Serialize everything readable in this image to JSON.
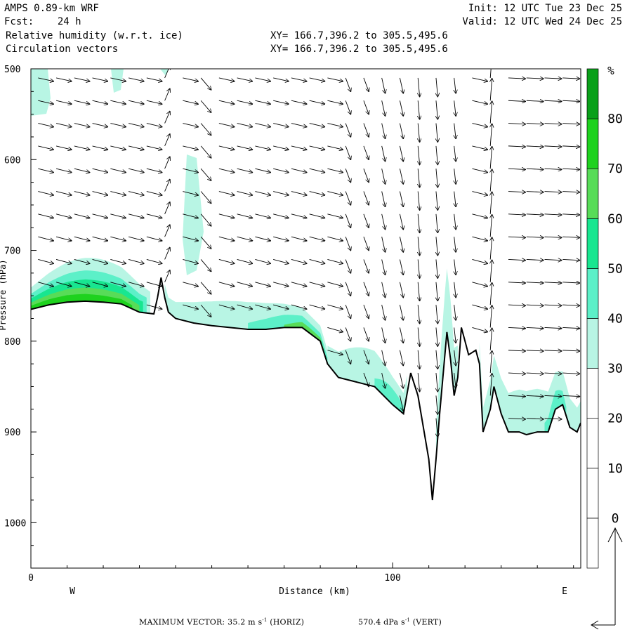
{
  "header": {
    "model": "AMPS 0.89-km WRF",
    "fcst_label": "Fcst:",
    "fcst_value": "24 h",
    "init_label": "Init:",
    "init_value": "12 UTC Tue 23 Dec 25",
    "valid_label": "Valid:",
    "valid_value": "12 UTC Wed 24 Dec 25",
    "field1": "Relative humidity (w.r.t. ice)",
    "field2": "Circulation vectors",
    "xy1": "XY= 166.7,396.2 to 305.5,495.6",
    "xy2": "XY= 166.7,396.2 to 305.5,495.6"
  },
  "footer": {
    "max_label": "MAXIMUM VECTOR:",
    "horiz_value": "35.2 m s",
    "horiz_exp": "-1",
    "horiz_tag": "(HORIZ)",
    "vert_value": "570.4 dPa s",
    "vert_exp": "-1",
    "vert_tag": "(VERT)"
  },
  "colorbar": {
    "unit": "%",
    "levels": [
      0,
      10,
      20,
      30,
      40,
      50,
      60,
      70,
      80
    ],
    "colors": [
      "#ffffff",
      "#ffffff",
      "#ffffff",
      "#b8f5e4",
      "#5cf0c8",
      "#18e690",
      "#58dc58",
      "#1ed21e",
      "#0aa01a"
    ]
  },
  "chart_data": {
    "type": "heatmap",
    "title": "Relative humidity (w.r.t. ice)",
    "overlay": "Circulation vectors",
    "xlabel": "Distance (km)",
    "ylabel": "Pressure (hPa)",
    "x_ticks": [
      0,
      100
    ],
    "y_ticks": [
      500,
      600,
      700,
      800,
      900,
      1000
    ],
    "xlim": [
      0,
      152
    ],
    "ylim": [
      1050,
      500
    ],
    "side_labels": {
      "left": "W",
      "right": "E"
    },
    "terrain_pressure": {
      "x": [
        0,
        5,
        10,
        15,
        20,
        25,
        30,
        34,
        35,
        36,
        37,
        38,
        40,
        45,
        50,
        55,
        60,
        65,
        70,
        75,
        80,
        82,
        85,
        90,
        95,
        100,
        103,
        105,
        107,
        110,
        111,
        112,
        113,
        115,
        116,
        117,
        118,
        119,
        120,
        121,
        123,
        124,
        125,
        127,
        128,
        130,
        132,
        135,
        137,
        140,
        143,
        145,
        147,
        149,
        151,
        152
      ],
      "p": [
        765,
        760,
        757,
        756,
        757,
        759,
        768,
        770,
        752,
        730,
        752,
        768,
        775,
        780,
        783,
        785,
        787,
        787,
        785,
        785,
        800,
        825,
        840,
        845,
        850,
        870,
        880,
        835,
        860,
        930,
        975,
        930,
        880,
        790,
        820,
        860,
        840,
        785,
        800,
        815,
        810,
        825,
        900,
        875,
        850,
        880,
        900,
        900,
        903,
        900,
        900,
        875,
        870,
        895,
        900,
        890
      ]
    },
    "humidity_bands": [
      {
        "level": "30-40",
        "region": "thin layer above terrain, broad wet patches 115-150 km at 850-900 hPa"
      },
      {
        "level": "40-80",
        "region": "low-level moist layer 0-30 km between 720 and 765 hPa"
      }
    ],
    "max_vector_horiz": 35.2,
    "max_vector_vert": 570.4
  }
}
